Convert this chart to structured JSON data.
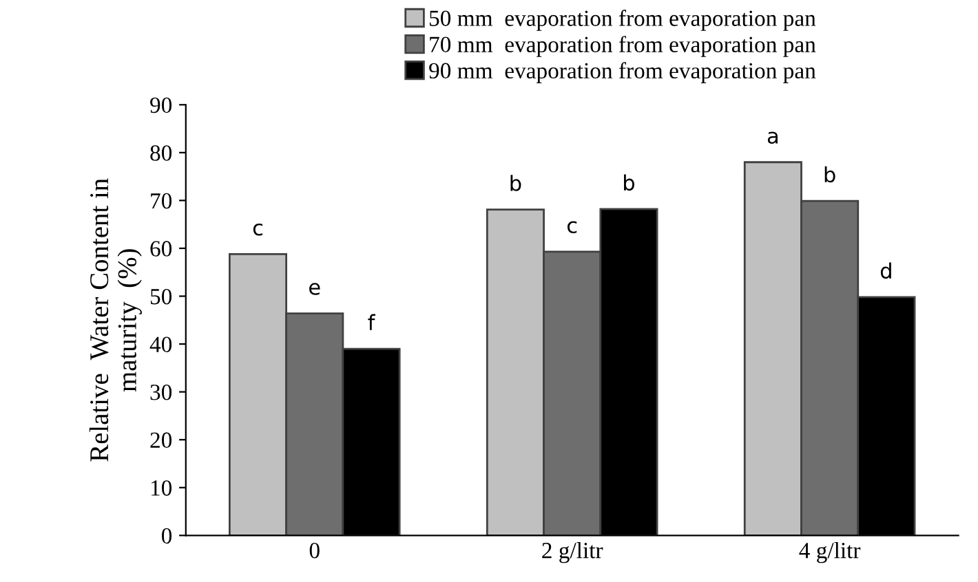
{
  "chart_data": {
    "type": "bar",
    "ylabel": "Relative  Water Content in\nmaturity  (%)",
    "categories": [
      "0",
      "2 g/litr",
      "4 g/litr"
    ],
    "series": [
      {
        "name": "50 mm  evaporation from evaporation pan",
        "color": "#c0c0c0",
        "values": [
          58.8,
          68.1,
          78.0
        ]
      },
      {
        "name": "70 mm  evaporation from evaporation pan",
        "color": "#6e6e6e",
        "values": [
          46.4,
          59.3,
          69.9
        ]
      },
      {
        "name": "90 mm  evaporation from evaporation pan",
        "color": "#000000",
        "values": [
          39.0,
          68.2,
          49.8
        ]
      }
    ],
    "ylim": [
      0,
      90
    ],
    "yticks": [
      0,
      10,
      20,
      30,
      40,
      50,
      60,
      70,
      80,
      90
    ],
    "grid": false,
    "legend": "top",
    "annotations": [
      "c",
      "e",
      "f",
      "b",
      "c",
      "b",
      "a",
      "b",
      "d"
    ]
  }
}
